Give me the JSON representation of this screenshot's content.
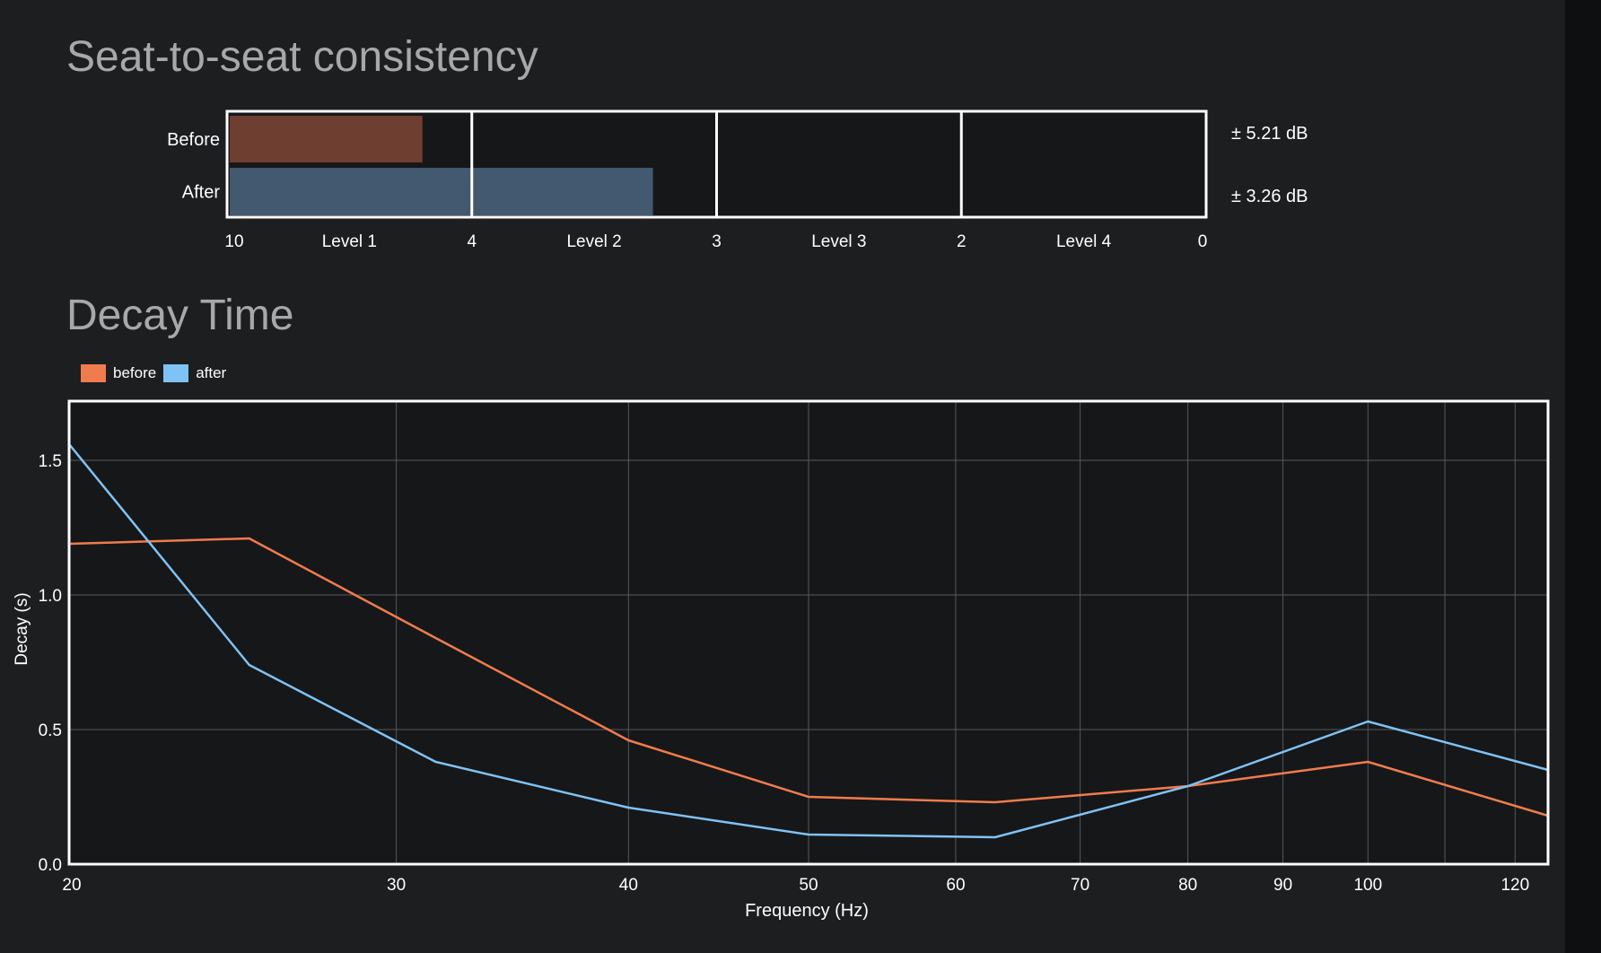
{
  "seat": {
    "title": "Seat-to-seat consistency",
    "rows": [
      {
        "label": "Before",
        "value": 5.21,
        "value_text": "± 5.21 dB",
        "color": "#6e3f31"
      },
      {
        "label": "After",
        "value": 3.26,
        "value_text": "± 3.26 dB",
        "color": "#42596f"
      }
    ],
    "boundary_ticks": [
      "10",
      "4",
      "3",
      "2",
      "0"
    ],
    "boundary_values": [
      10,
      4,
      3,
      2,
      0
    ],
    "levels": [
      "Level 1",
      "Level 2",
      "Level 3",
      "Level 4"
    ]
  },
  "decay": {
    "title": "Decay Time",
    "legend": [
      {
        "label": "before",
        "color": "#f07c4e"
      },
      {
        "label": "after",
        "color": "#7fc2f5"
      }
    ]
  },
  "chart_data": {
    "type": "line",
    "xscale": "log",
    "xlabel": "Frequency (Hz)",
    "ylabel": "Decay (s)",
    "xlim": [
      20,
      125
    ],
    "ylim": [
      0,
      1.72
    ],
    "xticks": [
      20,
      30,
      40,
      50,
      60,
      70,
      80,
      90,
      100,
      120
    ],
    "yticks": [
      0.0,
      0.5,
      1.0,
      1.5
    ],
    "ytick_labels": [
      "0.0",
      "0.5",
      "1.0",
      "1.5"
    ],
    "grid": true,
    "series": [
      {
        "name": "before",
        "color": "#f07c4e",
        "x": [
          20,
          25,
          31.5,
          40,
          50,
          63,
          80,
          100,
          125
        ],
        "y": [
          1.19,
          1.21,
          0.84,
          0.46,
          0.25,
          0.23,
          0.29,
          0.38,
          0.18
        ]
      },
      {
        "name": "after",
        "color": "#7fc2f5",
        "x": [
          20,
          25,
          31.5,
          40,
          50,
          63,
          80,
          100,
          125
        ],
        "y": [
          1.56,
          0.74,
          0.38,
          0.21,
          0.11,
          0.1,
          0.29,
          0.53,
          0.35
        ]
      }
    ]
  }
}
